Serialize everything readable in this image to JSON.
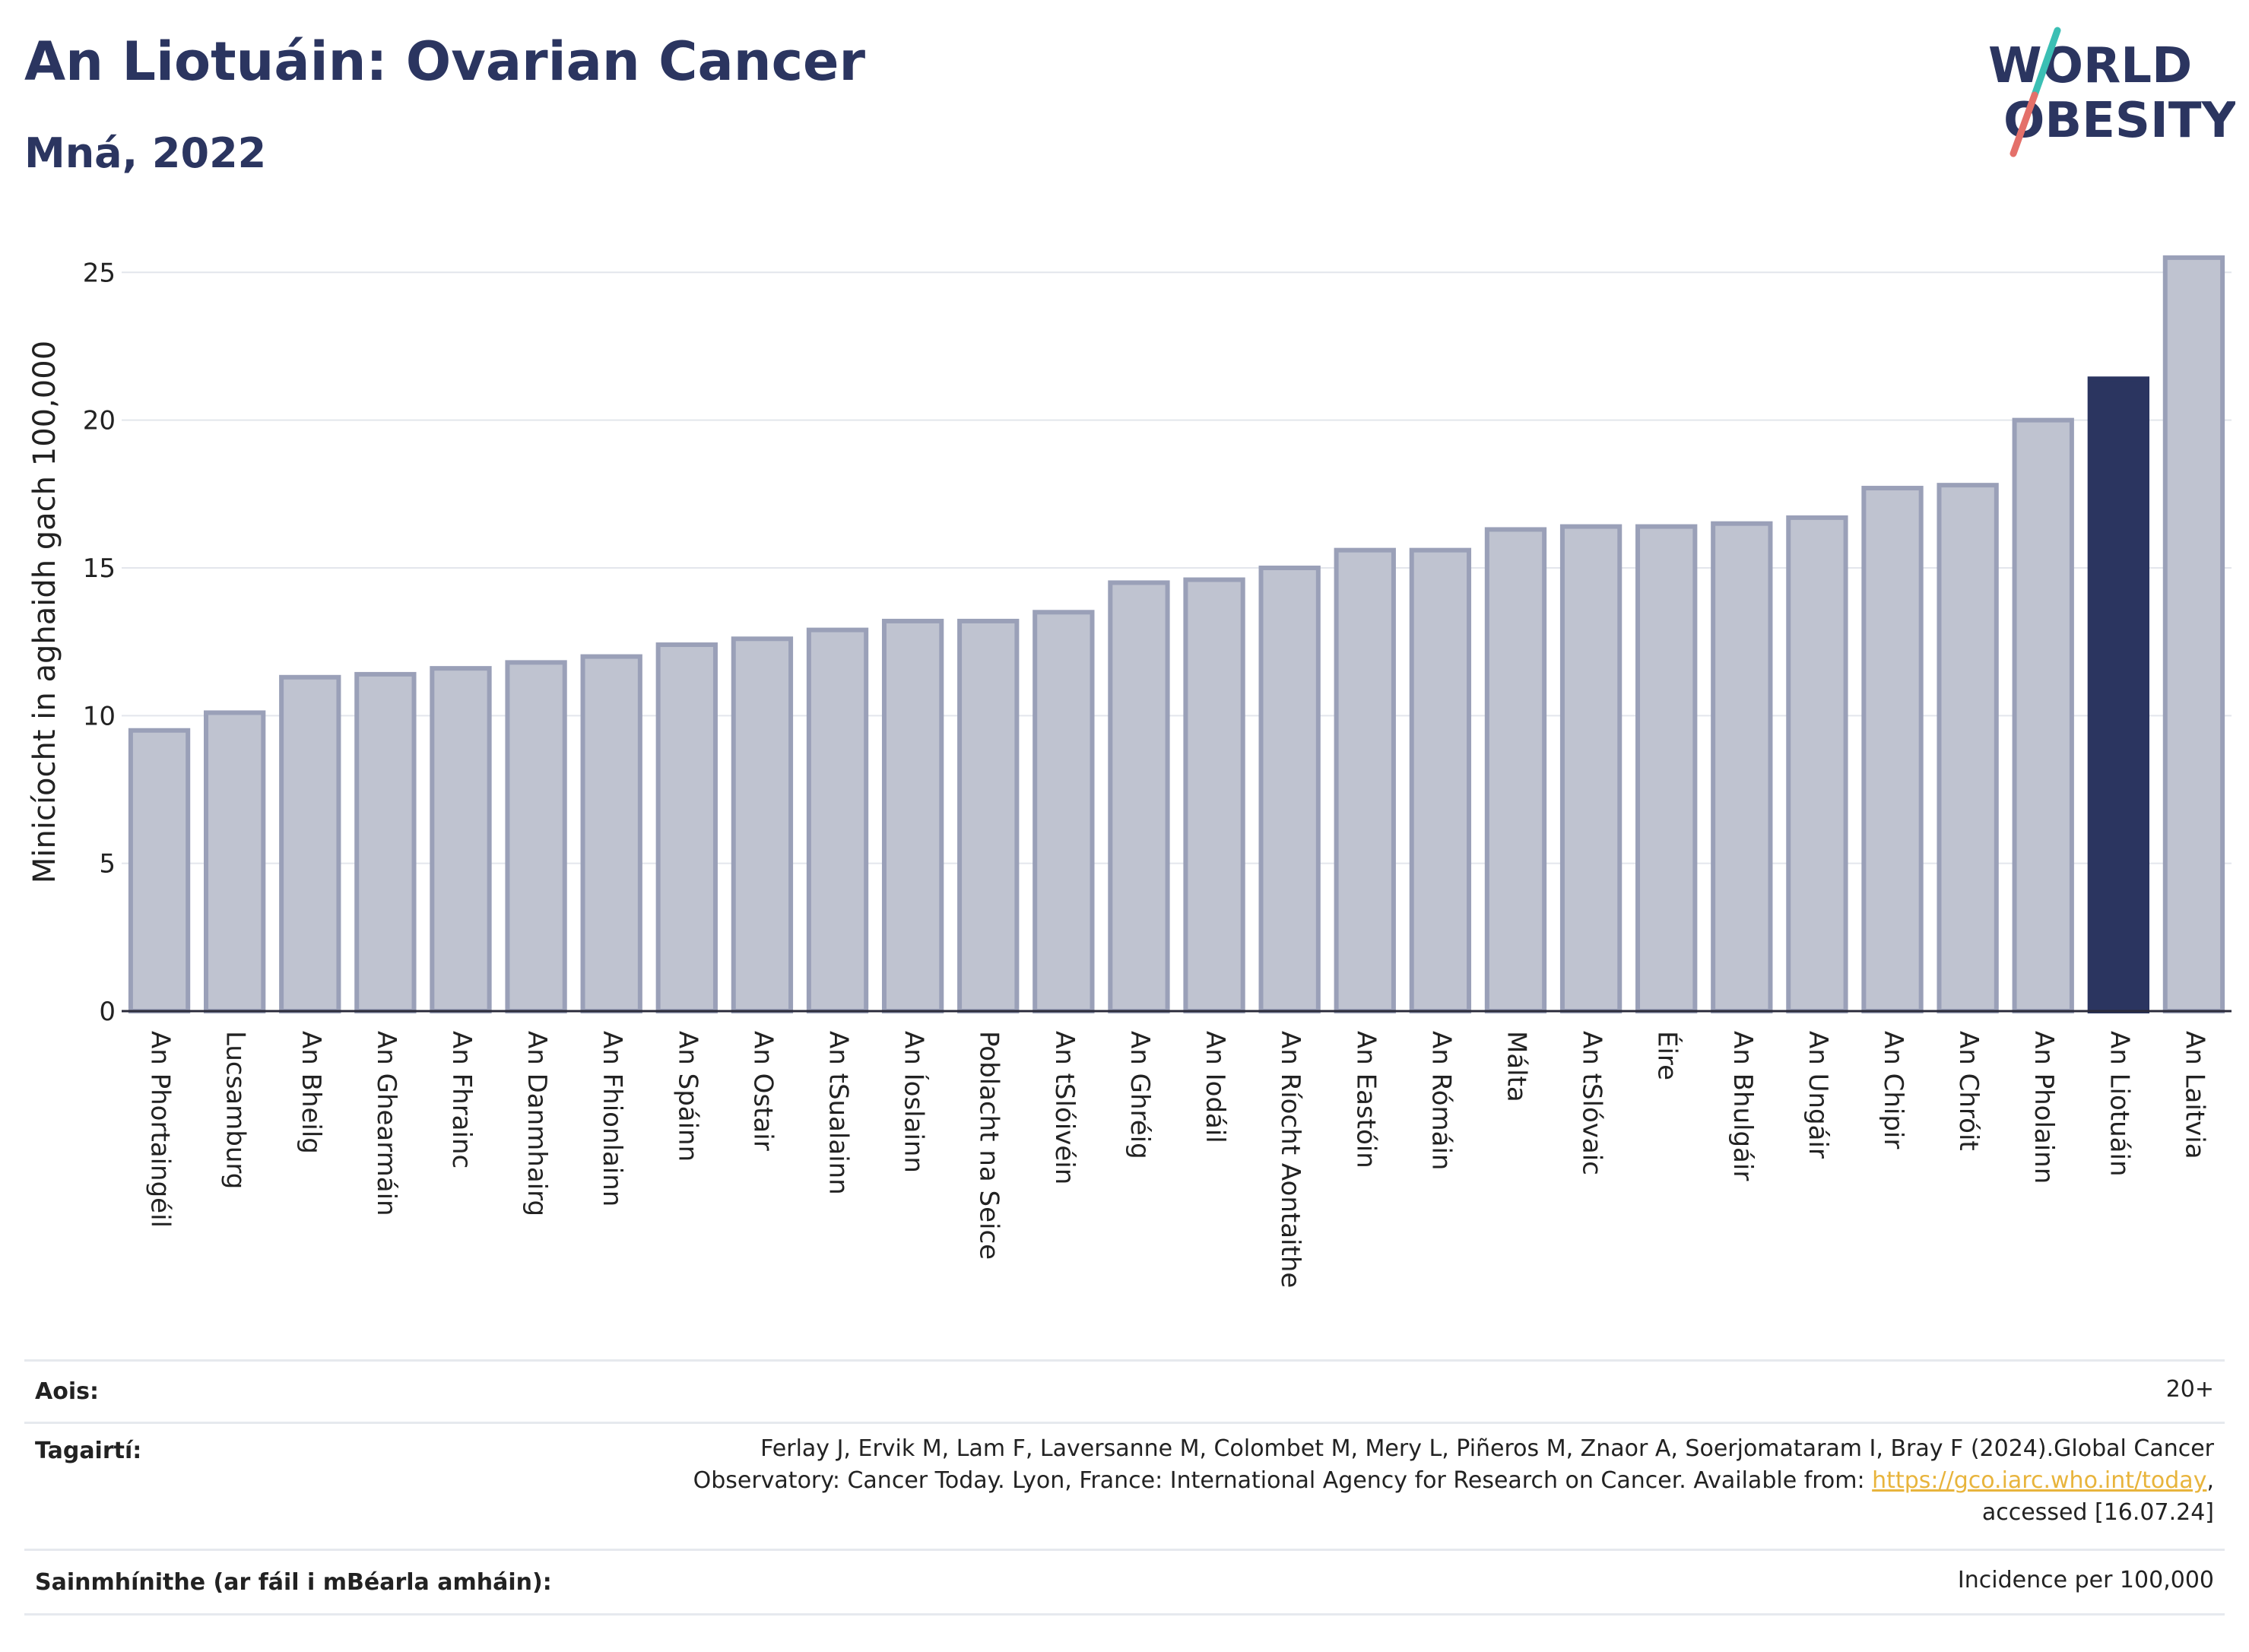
{
  "header": {
    "title": "An Liotuáin: Ovarian Cancer",
    "subtitle": "Mná, 2022",
    "logo_line1": "WORLD",
    "logo_line2": "OBESITY"
  },
  "chart_data": {
    "type": "bar",
    "title": "An Liotuáin: Ovarian Cancer",
    "subtitle": "Mná, 2022",
    "ylabel": "Minicíocht in aghaidh gach 100,000",
    "xlabel": "",
    "ylim": [
      0,
      26.5
    ],
    "yticks": [
      0,
      5,
      10,
      15,
      20,
      25
    ],
    "grid": true,
    "highlight": "An Liotuáin",
    "colors": {
      "default": "#bfc3d0",
      "default_edge": "#9aa0b8",
      "highlight": "#2b3560"
    },
    "categories": [
      "An Phortaingéil",
      "Lucsamburg",
      "An Bheilg",
      "An Ghearmáin",
      "An Fhrainc",
      "An Danmhairg",
      "An Fhionlainn",
      "An Spáinn",
      "An Ostair",
      "An tSualainn",
      "An Íoslainn",
      "Poblacht na Seice",
      "An tSlóivéin",
      "An Ghréig",
      "An Iodáil",
      "An Ríocht Aontaithe",
      "An Eastóin",
      "An Rómáin",
      "Málta",
      "An tSlóvaic",
      "Éire",
      "An Bhulgáir",
      "An Ungáir",
      "An Chipir",
      "An Chróit",
      "An Pholainn",
      "An Liotuáin",
      "An Laitvia"
    ],
    "values": [
      9.5,
      10.1,
      11.3,
      11.4,
      11.6,
      11.8,
      12.0,
      12.4,
      12.6,
      12.9,
      13.2,
      13.2,
      13.5,
      14.5,
      14.6,
      15.0,
      15.6,
      15.6,
      16.3,
      16.4,
      16.4,
      16.5,
      16.7,
      17.7,
      17.8,
      20.0,
      21.4,
      25.5
    ]
  },
  "info": {
    "age_label": "Aois:",
    "age_value": "20+",
    "ref_label": "Tagairtí:",
    "ref_line1": "Ferlay J, Ervik M, Lam F, Laversanne M, Colombet M, Mery L, Piñeros M, Znaor A, Soerjomataram I, Bray F (2024).Global Cancer",
    "ref_line2_pre": "Observatory: Cancer Today. Lyon, France: International Agency for Research on Cancer. Available from: ",
    "ref_link": "https://gco.iarc.who.int/today",
    "ref_line2_post": ",",
    "ref_line3": "accessed [16.07.24]",
    "def_label": "Sainmhínithe (ar fáil i mBéarla amháin):",
    "def_value": "Incidence per 100,000"
  }
}
